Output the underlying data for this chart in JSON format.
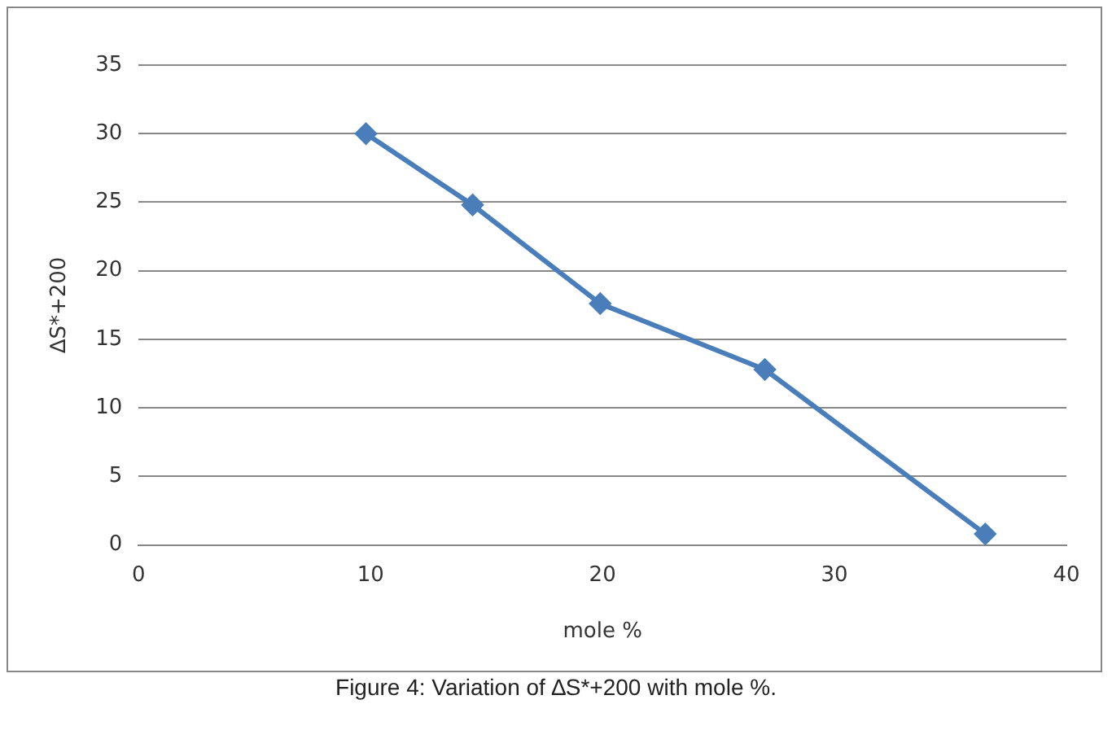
{
  "chart_data": {
    "type": "line",
    "xlabel": "mole %",
    "ylabel": "∆S*+200",
    "annotations": [
      "Figure 4: Variation of ∆S*+200 with mole %."
    ],
    "x": [
      9.8,
      14.4,
      19.9,
      27.0,
      36.5
    ],
    "series": [
      {
        "color": "#4a7ebb",
        "values": [
          30,
          24.8,
          17.6,
          12.8,
          0.8
        ]
      }
    ],
    "xlim": [
      0,
      40
    ],
    "xticks": [
      0,
      10,
      20,
      30,
      40
    ],
    "ylim": [
      0,
      35
    ],
    "yticks": [
      0,
      5,
      10,
      15,
      20,
      25,
      30,
      35
    ],
    "grid": "y",
    "legend": false,
    "marker": "diamond",
    "line_style": "solid"
  }
}
